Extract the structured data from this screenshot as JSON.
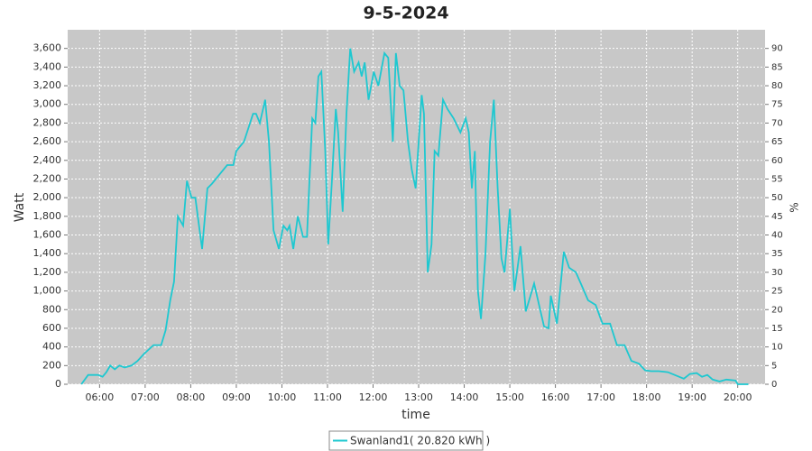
{
  "chart_data": {
    "type": "line",
    "title": "9-5-2024",
    "x_label": "time",
    "y_label": "Watt",
    "y2_label": "%",
    "grid": true,
    "legend": "bottom",
    "xlim": [
      "05:18",
      "20:36"
    ],
    "xticks": [
      "06:00",
      "07:00",
      "08:00",
      "09:00",
      "10:00",
      "11:00",
      "12:00",
      "13:00",
      "14:00",
      "15:00",
      "16:00",
      "17:00",
      "18:00",
      "19:00",
      "20:00"
    ],
    "ylim": [
      0,
      3800
    ],
    "yticks": [
      0,
      200,
      400,
      600,
      800,
      {
        "value": 1000,
        "label": "1,000"
      },
      {
        "value": 1200,
        "label": "1,200"
      },
      {
        "value": 1400,
        "label": "1,400"
      },
      {
        "value": 1600,
        "label": "1,600"
      },
      {
        "value": 1800,
        "label": "1,800"
      },
      {
        "value": 2000,
        "label": "2,000"
      },
      {
        "value": 2200,
        "label": "2,200"
      },
      {
        "value": 2400,
        "label": "2,400"
      },
      {
        "value": 2600,
        "label": "2,600"
      },
      {
        "value": 2800,
        "label": "2,800"
      },
      {
        "value": 3000,
        "label": "3,000"
      },
      {
        "value": 3200,
        "label": "3,200"
      },
      {
        "value": 3400,
        "label": "3,400"
      },
      {
        "value": 3600,
        "label": "3,600"
      }
    ],
    "y2lim": [
      0,
      95
    ],
    "y2ticks": [
      0,
      5,
      10,
      15,
      20,
      25,
      30,
      35,
      40,
      45,
      50,
      55,
      60,
      65,
      70,
      75,
      80,
      85,
      90
    ],
    "x": [
      "05:36",
      "05:45",
      "05:58",
      "06:04",
      "06:09",
      "06:14",
      "06:20",
      "06:26",
      "06:33",
      "06:42",
      "06:50",
      "06:59",
      "07:11",
      "07:21",
      "07:27",
      "07:33",
      "07:38",
      "07:43",
      "07:50",
      "07:55",
      "08:01",
      "08:06",
      "08:15",
      "08:22",
      "08:28",
      "08:38",
      "08:48",
      "08:56",
      "09:00",
      "09:10",
      "09:22",
      "09:26",
      "09:31",
      "09:38",
      "09:43",
      "09:49",
      "09:56",
      "10:02",
      "10:07",
      "10:10",
      "10:15",
      "10:21",
      "10:28",
      "10:33",
      "10:40",
      "10:44",
      "10:48",
      "10:52",
      "10:57",
      "11:01",
      "11:06",
      "11:11",
      "11:14",
      "11:20",
      "11:25",
      "11:30",
      "11:35",
      "11:41",
      "11:45",
      "11:49",
      "11:54",
      "12:01",
      "12:07",
      "12:15",
      "12:20",
      "12:26",
      "12:30",
      "12:35",
      "12:40",
      "12:46",
      "12:51",
      "12:56",
      "13:04",
      "13:07",
      "13:12",
      "13:17",
      "13:21",
      "13:26",
      "13:32",
      "13:38",
      "13:46",
      "13:55",
      "14:02",
      "14:06",
      "14:10",
      "14:14",
      "14:18",
      "14:22",
      "14:28",
      "14:34",
      "14:39",
      "14:44",
      "14:49",
      "14:53",
      "15:00",
      "15:06",
      "15:14",
      "15:21",
      "15:32",
      "15:45",
      "15:51",
      "15:54",
      "16:02",
      "16:11",
      "16:18",
      "16:27",
      "16:35",
      "16:43",
      "16:53",
      "17:02",
      "17:12",
      "17:21",
      "17:31",
      "17:40",
      "17:50",
      "17:58",
      "18:06",
      "18:16",
      "18:28",
      "18:37",
      "18:49",
      "18:57",
      "19:06",
      "19:13",
      "19:20",
      "19:27",
      "19:36",
      "19:45",
      "19:57",
      "20:00",
      "20:14"
    ],
    "series": [
      {
        "name": "Swanland1( 20.820 kWh )",
        "color": "#1ec8d0",
        "values": [
          0,
          100,
          100,
          80,
          130,
          200,
          160,
          200,
          180,
          200,
          250,
          330,
          420,
          420,
          580,
          900,
          1100,
          1800,
          1700,
          2180,
          2000,
          2000,
          1450,
          2100,
          2150,
          2250,
          2350,
          2350,
          2500,
          2600,
          2900,
          2900,
          2800,
          3050,
          2600,
          1650,
          1450,
          1700,
          1650,
          1700,
          1450,
          1800,
          1580,
          1580,
          2850,
          2800,
          3300,
          3350,
          2500,
          1500,
          2200,
          2950,
          2700,
          1850,
          2900,
          3600,
          3350,
          3450,
          3300,
          3450,
          3050,
          3350,
          3200,
          3550,
          3500,
          2600,
          3550,
          3200,
          3150,
          2600,
          2300,
          2100,
          3100,
          2900,
          1200,
          1500,
          2500,
          2450,
          3050,
          2950,
          2850,
          2700,
          2850,
          2700,
          2100,
          2500,
          1000,
          700,
          1400,
          2600,
          3050,
          2100,
          1350,
          1200,
          1880,
          1000,
          1480,
          780,
          1080,
          620,
          600,
          950,
          650,
          1420,
          1250,
          1200,
          1050,
          900,
          850,
          650,
          650,
          420,
          420,
          250,
          220,
          150,
          140,
          140,
          130,
          100,
          60,
          110,
          120,
          80,
          100,
          50,
          30,
          50,
          40,
          0,
          0
        ]
      }
    ]
  }
}
